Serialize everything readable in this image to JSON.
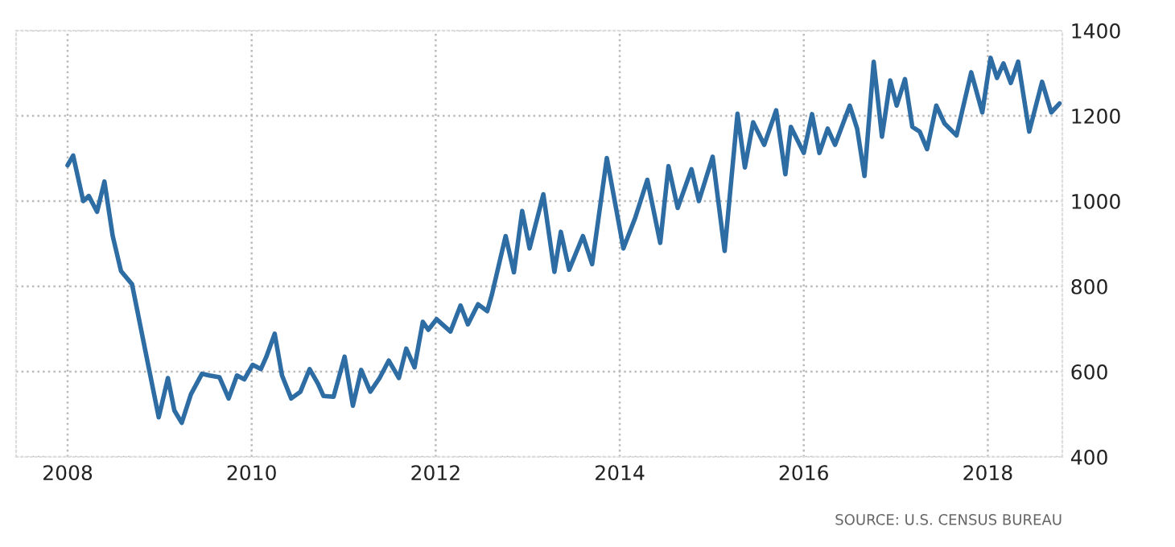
{
  "chart_data": {
    "type": "line",
    "x": [
      2008.0,
      2008.06,
      2008.17,
      2008.23,
      2008.32,
      2008.4,
      2008.49,
      2008.58,
      2008.7,
      2008.84,
      2008.99,
      2009.09,
      2009.16,
      2009.24,
      2009.34,
      2009.46,
      2009.54,
      2009.65,
      2009.75,
      2009.84,
      2009.92,
      2010.01,
      2010.1,
      2010.16,
      2010.25,
      2010.33,
      2010.43,
      2010.53,
      2010.63,
      2010.72,
      2010.78,
      2010.89,
      2011.01,
      2011.1,
      2011.19,
      2011.29,
      2011.39,
      2011.49,
      2011.6,
      2011.68,
      2011.77,
      2011.86,
      2011.92,
      2012.01,
      2012.16,
      2012.27,
      2012.35,
      2012.46,
      2012.56,
      2012.61,
      2012.76,
      2012.85,
      2012.94,
      2013.02,
      2013.17,
      2013.29,
      2013.36,
      2013.45,
      2013.6,
      2013.7,
      2013.86,
      2014.04,
      2014.17,
      2014.3,
      2014.44,
      2014.53,
      2014.63,
      2014.78,
      2014.86,
      2015.01,
      2015.14,
      2015.28,
      2015.36,
      2015.45,
      2015.57,
      2015.7,
      2015.8,
      2015.86,
      2016.0,
      2016.09,
      2016.17,
      2016.26,
      2016.34,
      2016.5,
      2016.58,
      2016.66,
      2016.76,
      2016.85,
      2016.94,
      2017.01,
      2017.1,
      2017.18,
      2017.26,
      2017.34,
      2017.44,
      2017.53,
      2017.66,
      2017.82,
      2017.94,
      2018.03,
      2018.1,
      2018.17,
      2018.25,
      2018.33,
      2018.45,
      2018.59,
      2018.69,
      2018.78
    ],
    "series": [
      {
        "color": "#2e6ca4",
        "values": [
          1084,
          1107,
          1000,
          1012,
          975,
          1046,
          918,
          836,
          805,
          654,
          493,
          585,
          509,
          480,
          547,
          595,
          591,
          587,
          537,
          591,
          582,
          616,
          606,
          635,
          689,
          591,
          537,
          553,
          606,
          572,
          543,
          541,
          635,
          520,
          604,
          553,
          585,
          626,
          585,
          654,
          610,
          717,
          698,
          723,
          694,
          755,
          711,
          758,
          742,
          780,
          918,
          833,
          977,
          889,
          1016,
          834,
          928,
          839,
          918,
          852,
          1101,
          889,
          962,
          1050,
          902,
          1082,
          984,
          1075,
          1000,
          1104,
          883,
          1205,
          1079,
          1185,
          1132,
          1213,
          1063,
          1174,
          1113,
          1204,
          1113,
          1170,
          1132,
          1224,
          1170,
          1059,
          1327,
          1151,
          1283,
          1224,
          1286,
          1174,
          1163,
          1122,
          1224,
          1182,
          1154,
          1302,
          1208,
          1336,
          1289,
          1323,
          1277,
          1327,
          1163,
          1280,
          1208,
          1229
        ]
      }
    ],
    "xlim": [
      2007.44,
      2018.81
    ],
    "xticks": [
      2008,
      2010,
      2012,
      2014,
      2016,
      2018
    ],
    "ylim": [
      400,
      1400
    ],
    "yticks": [
      400,
      600,
      800,
      1000,
      1200,
      1400
    ],
    "grid": true,
    "legend": false,
    "annotations": [
      "SOURCE: U.S. CENSUS BUREAU"
    ]
  }
}
